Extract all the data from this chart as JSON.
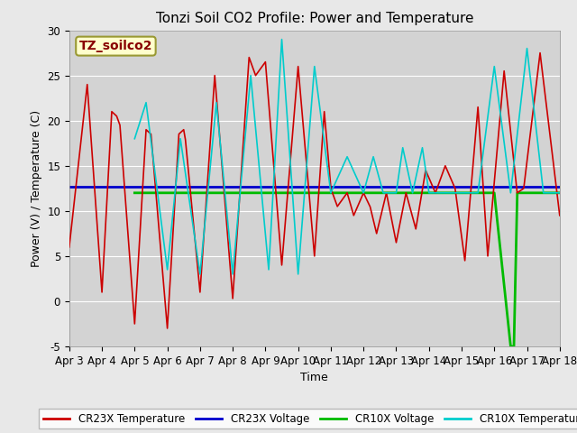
{
  "title": "Tonzi Soil CO2 Profile: Power and Temperature",
  "ylabel": "Power (V) / Temperature (C)",
  "xlabel": "Time",
  "ylim": [
    -5,
    30
  ],
  "background_color": "#e8e8e8",
  "plot_bg_color": "#d3d3d3",
  "annotation_text": "TZ_soilco2",
  "annotation_color": "#880000",
  "annotation_bg": "#ffffcc",
  "annotation_border": "#999933",
  "cr23x_temp_color": "#cc0000",
  "cr23x_volt_color": "#0000cc",
  "cr10x_volt_color": "#00bb00",
  "cr10x_temp_color": "#00cccc",
  "cr23x_volt_value": 12.65,
  "cr10x_volt_value": 12.0,
  "xtick_labels": [
    "Apr 3",
    "Apr 4",
    "Apr 5",
    "Apr 6",
    "Apr 7",
    "Apr 8",
    "Apr 9",
    "Apr 10",
    "Apr 11",
    "Apr 12",
    "Apr 13",
    "Apr 14",
    "Apr 15",
    "Apr 16",
    "Apr 17",
    "Apr 18"
  ],
  "ytick_values": [
    -5,
    0,
    5,
    10,
    15,
    20,
    25,
    30
  ],
  "grid_color": "#ffffff",
  "title_fontsize": 11,
  "axis_fontsize": 9,
  "tick_fontsize": 8.5,
  "legend_fontsize": 8.5
}
